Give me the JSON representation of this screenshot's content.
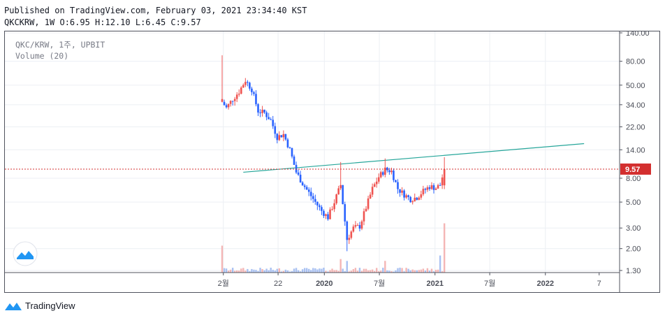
{
  "header": {
    "published": "Published on TradingView.com, February 03, 2021 23:34:40 KST",
    "ohlc": "QKCKRW, 1W O:6.95 H:12.10 L:6.45 C:9.57"
  },
  "legend": {
    "symbol": "QKC/KRW, 1주, UPBIT",
    "volume": "Volume (20)"
  },
  "footer": {
    "brand": "TradingView"
  },
  "colors": {
    "up": "#ef5350",
    "down": "#2962ff",
    "up_volume": "#f4b6b5",
    "down_volume": "#a9c1f2",
    "trendline": "#26a69a",
    "price_line": "#d32f2f",
    "grid": "#eceff4",
    "axis_text": "#4a4d57",
    "logo_blue": "#2196f3"
  },
  "chart_data": {
    "type": "candlestick",
    "scale": "log",
    "grid": true,
    "y_axis_ticks": [
      "140.00",
      "80.00",
      "50.00",
      "34.00",
      "22.00",
      "14.00",
      "8.00",
      "5.00",
      "3.00",
      "2.00",
      "1.30"
    ],
    "x_axis_ticks": [
      "2월",
      "22",
      "2020",
      "7월",
      "2021",
      "7월",
      "2022",
      "7"
    ],
    "last_price_label": "9.57",
    "last_price": 9.57,
    "trendline": {
      "start": [
        "2019-04-08",
        9.0
      ],
      "end": [
        "2022-05-09",
        15.8
      ]
    },
    "ohlc_weekly_approx": [
      {
        "date": "2019-01-28",
        "close": 36
      },
      {
        "date": "2019-02-11",
        "close": 32
      },
      {
        "date": "2019-03-04",
        "close": 38
      },
      {
        "date": "2019-03-25",
        "close": 44
      },
      {
        "date": "2019-04-15",
        "close": 55
      },
      {
        "date": "2019-05-06",
        "close": 46
      },
      {
        "date": "2019-05-27",
        "close": 30
      },
      {
        "date": "2019-06-17",
        "close": 29
      },
      {
        "date": "2019-07-08",
        "close": 25
      },
      {
        "date": "2019-07-29",
        "close": 18
      },
      {
        "date": "2019-08-19",
        "close": 19
      },
      {
        "date": "2019-09-09",
        "close": 14
      },
      {
        "date": "2019-09-30",
        "close": 9
      },
      {
        "date": "2019-10-21",
        "close": 7.2
      },
      {
        "date": "2019-11-11",
        "close": 6
      },
      {
        "date": "2019-12-02",
        "close": 5
      },
      {
        "date": "2019-12-23",
        "close": 4.2
      },
      {
        "date": "2020-01-13",
        "close": 3.7
      },
      {
        "date": "2020-02-03",
        "close": 5
      },
      {
        "date": "2020-02-24",
        "close": 7
      },
      {
        "date": "2020-03-16",
        "close": 2.4
      },
      {
        "date": "2020-04-06",
        "close": 3
      },
      {
        "date": "2020-04-27",
        "close": 3.1
      },
      {
        "date": "2020-05-18",
        "close": 4.5
      },
      {
        "date": "2020-06-08",
        "close": 6.5
      },
      {
        "date": "2020-06-29",
        "close": 8.2
      },
      {
        "date": "2020-07-20",
        "close": 9.5
      },
      {
        "date": "2020-08-10",
        "close": 9.2
      },
      {
        "date": "2020-08-31",
        "close": 6.5
      },
      {
        "date": "2020-09-21",
        "close": 5.8
      },
      {
        "date": "2020-10-12",
        "close": 5.3
      },
      {
        "date": "2020-11-02",
        "close": 5.5
      },
      {
        "date": "2020-11-23",
        "close": 6.2
      },
      {
        "date": "2020-12-14",
        "close": 6.8
      },
      {
        "date": "2021-01-04",
        "close": 6.6
      },
      {
        "date": "2021-01-18",
        "close": 7.0
      },
      {
        "date": "2021-02-01",
        "close": 9.57
      }
    ]
  }
}
